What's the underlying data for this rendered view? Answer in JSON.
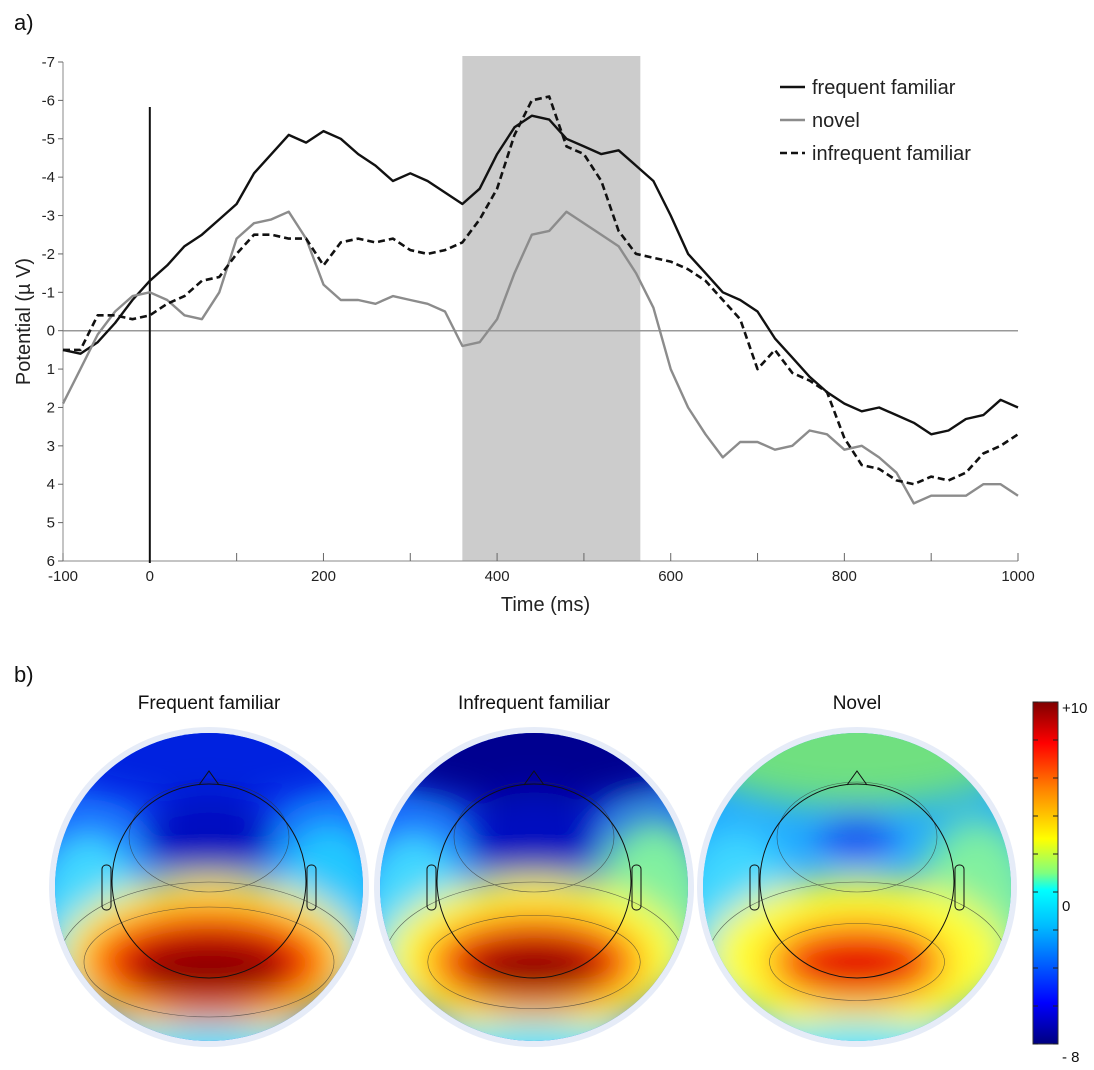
{
  "panel_a_label": "a)",
  "panel_b_label": "b)",
  "chart_data": [
    {
      "type": "line",
      "xlabel": "Time (ms)",
      "ylabel": "Potential (µ V)",
      "xlim": [
        -100,
        1000
      ],
      "ylim": [
        6,
        -7
      ],
      "y_axis_inverted": true,
      "xticks": [
        -100,
        0,
        200,
        400,
        600,
        800,
        1000
      ],
      "yticks": [
        -7,
        -6,
        -5,
        -4,
        -3,
        -2,
        -1,
        0,
        1,
        2,
        3,
        4,
        5,
        6
      ],
      "highlight_window": [
        360,
        565
      ],
      "stimulus_onset": 0,
      "legend_position": "top-right",
      "series": [
        {
          "name": "frequent familiar",
          "color": "#111111",
          "style": "solid",
          "x": [
            -100,
            -80,
            -60,
            -40,
            -20,
            0,
            20,
            40,
            60,
            80,
            100,
            120,
            140,
            160,
            180,
            200,
            220,
            240,
            260,
            280,
            300,
            320,
            340,
            360,
            380,
            400,
            420,
            440,
            460,
            480,
            500,
            520,
            540,
            560,
            580,
            600,
            620,
            640,
            660,
            680,
            700,
            720,
            740,
            760,
            780,
            800,
            820,
            840,
            860,
            880,
            900,
            920,
            940,
            960,
            980,
            1000
          ],
          "values": [
            0.5,
            0.6,
            0.3,
            -0.2,
            -0.8,
            -1.3,
            -1.7,
            -2.2,
            -2.5,
            -2.9,
            -3.3,
            -4.1,
            -4.6,
            -5.1,
            -4.9,
            -5.2,
            -5.0,
            -4.6,
            -4.3,
            -3.9,
            -4.1,
            -3.9,
            -3.6,
            -3.3,
            -3.7,
            -4.6,
            -5.3,
            -5.6,
            -5.5,
            -5.0,
            -4.8,
            -4.6,
            -4.7,
            -4.3,
            -3.9,
            -3.0,
            -2.0,
            -1.5,
            -1.0,
            -0.8,
            -0.5,
            0.2,
            0.7,
            1.2,
            1.6,
            1.9,
            2.1,
            2.0,
            2.2,
            2.4,
            2.7,
            2.6,
            2.3,
            2.2,
            1.8,
            2.0
          ]
        },
        {
          "name": "novel",
          "color": "#8c8c8c",
          "style": "solid",
          "x": [
            -100,
            -80,
            -60,
            -40,
            -20,
            0,
            20,
            40,
            60,
            80,
            100,
            120,
            140,
            160,
            180,
            200,
            220,
            240,
            260,
            280,
            300,
            320,
            340,
            360,
            380,
            400,
            420,
            440,
            460,
            480,
            500,
            520,
            540,
            560,
            580,
            600,
            620,
            640,
            660,
            680,
            700,
            720,
            740,
            760,
            780,
            800,
            820,
            840,
            860,
            880,
            900,
            920,
            940,
            960,
            980,
            1000
          ],
          "values": [
            1.9,
            1.0,
            0.1,
            -0.5,
            -0.9,
            -1.0,
            -0.8,
            -0.4,
            -0.3,
            -1.0,
            -2.4,
            -2.8,
            -2.9,
            -3.1,
            -2.4,
            -1.2,
            -0.8,
            -0.8,
            -0.7,
            -0.9,
            -0.8,
            -0.7,
            -0.5,
            0.4,
            0.3,
            -0.3,
            -1.5,
            -2.5,
            -2.6,
            -3.1,
            -2.8,
            -2.5,
            -2.2,
            -1.5,
            -0.6,
            1.0,
            2.0,
            2.7,
            3.3,
            2.9,
            2.9,
            3.1,
            3.0,
            2.6,
            2.7,
            3.1,
            3.0,
            3.3,
            3.7,
            4.5,
            4.3,
            4.3,
            4.3,
            4.0,
            4.0,
            4.3
          ]
        },
        {
          "name": "infrequent familiar",
          "color": "#111111",
          "style": "dashed",
          "x": [
            -100,
            -80,
            -60,
            -40,
            -20,
            0,
            20,
            40,
            60,
            80,
            100,
            120,
            140,
            160,
            180,
            200,
            220,
            240,
            260,
            280,
            300,
            320,
            340,
            360,
            380,
            400,
            420,
            440,
            460,
            480,
            500,
            520,
            540,
            560,
            580,
            600,
            620,
            640,
            660,
            680,
            700,
            720,
            740,
            760,
            780,
            800,
            820,
            840,
            860,
            880,
            900,
            920,
            940,
            960,
            980,
            1000
          ],
          "values": [
            0.5,
            0.5,
            -0.4,
            -0.4,
            -0.3,
            -0.4,
            -0.7,
            -0.9,
            -1.3,
            -1.4,
            -2.0,
            -2.5,
            -2.5,
            -2.4,
            -2.4,
            -1.7,
            -2.3,
            -2.4,
            -2.3,
            -2.4,
            -2.1,
            -2.0,
            -2.1,
            -2.3,
            -2.9,
            -3.7,
            -5.1,
            -6.0,
            -6.1,
            -4.8,
            -4.6,
            -3.9,
            -2.6,
            -2.0,
            -1.9,
            -1.8,
            -1.6,
            -1.3,
            -0.8,
            -0.3,
            1.0,
            0.5,
            1.1,
            1.3,
            1.6,
            2.8,
            3.5,
            3.6,
            3.9,
            4.0,
            3.8,
            3.9,
            3.7,
            3.2,
            3.0,
            2.7
          ]
        }
      ]
    },
    {
      "type": "heatmap",
      "maps": [
        {
          "title": "Frequent familiar",
          "pos_strength": 1.0,
          "neg_strength": 0.95
        },
        {
          "title": "Infrequent familiar",
          "pos_strength": 0.85,
          "neg_strength": 1.0
        },
        {
          "title": "Novel",
          "pos_strength": 0.7,
          "neg_strength": 0.55
        }
      ],
      "colorbar": {
        "max_label": "+10",
        "mid_label": "0",
        "min_label": "- 8",
        "max": 10,
        "min": -8
      }
    }
  ]
}
